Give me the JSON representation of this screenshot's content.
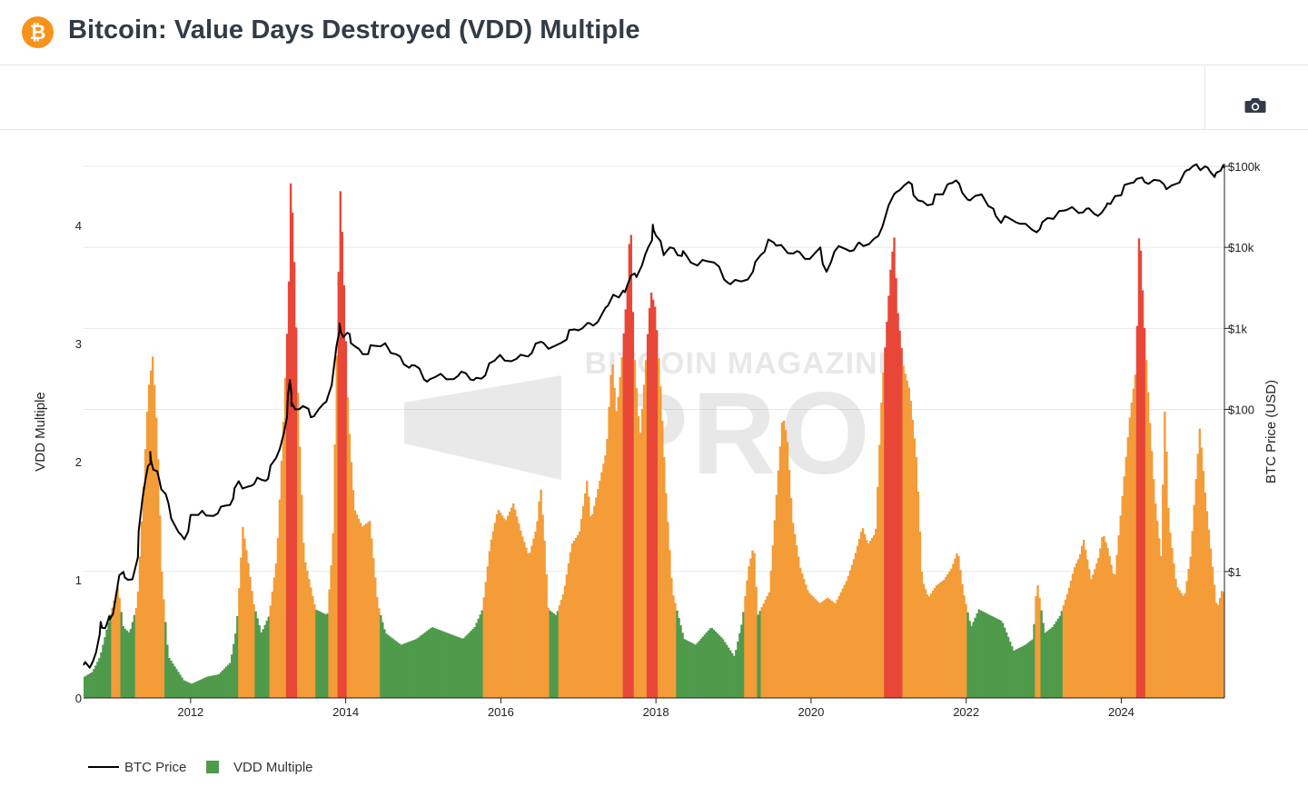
{
  "header": {
    "title": "Bitcoin: Value Days Destroyed (VDD) Multiple",
    "logo_glyph": "₿",
    "logo_color": "#f7931a"
  },
  "toolbar": {
    "camera_icon": "camera-icon"
  },
  "watermark": {
    "line1": "BITCOIN MAGAZINE",
    "line2": "PRO",
    "reg": "®"
  },
  "legend": [
    {
      "label": "BTC Price",
      "kind": "line",
      "color": "#000000"
    },
    {
      "label": "VDD Multiple",
      "kind": "square",
      "color": "#4f9a4b"
    }
  ],
  "chart_data": {
    "type": "bar+line",
    "title": "Bitcoin: Value Days Destroyed (VDD) Multiple",
    "ylabel_left": "VDD Multiple",
    "ylabel_right": "BTC Price (USD)",
    "xlim": [
      2010.62,
      2025.33
    ],
    "ylim_left": [
      0,
      4.5
    ],
    "ylim_right_log10": [
      -1.56,
      5.0
    ],
    "x_ticks": [
      2012,
      2014,
      2016,
      2018,
      2020,
      2022,
      2024
    ],
    "x_tick_labels": [
      "2012",
      "2014",
      "2016",
      "2018",
      "2020",
      "2022",
      "2024"
    ],
    "y_left_ticks": [
      0,
      1,
      2,
      3,
      4
    ],
    "y_left_tick_labels": [
      "0",
      "1",
      "2",
      "3",
      "4"
    ],
    "y_right_ticks": [
      1,
      100,
      1000,
      10000,
      100000
    ],
    "y_right_tick_labels": [
      "$1",
      "$100",
      "$1k",
      "$10k",
      "$100k"
    ],
    "color_bands": {
      "green_below": 0.75,
      "orange_below": 2.9,
      "green": "#4f9a4b",
      "orange": "#f39c38",
      "red": "#e84737"
    },
    "vdd_series": {
      "name": "VDD Multiple",
      "points": [
        [
          2010.62,
          0.18
        ],
        [
          2010.72,
          0.22
        ],
        [
          2010.82,
          0.35
        ],
        [
          2010.95,
          0.7
        ],
        [
          2011.05,
          0.95
        ],
        [
          2011.12,
          0.6
        ],
        [
          2011.2,
          0.55
        ],
        [
          2011.3,
          0.8
        ],
        [
          2011.38,
          1.8
        ],
        [
          2011.44,
          2.6
        ],
        [
          2011.5,
          2.9
        ],
        [
          2011.56,
          2.2
        ],
        [
          2011.62,
          1.0
        ],
        [
          2011.7,
          0.35
        ],
        [
          2011.8,
          0.25
        ],
        [
          2011.9,
          0.15
        ],
        [
          2012.0,
          0.12
        ],
        [
          2012.2,
          0.18
        ],
        [
          2012.35,
          0.2
        ],
        [
          2012.5,
          0.3
        ],
        [
          2012.58,
          0.6
        ],
        [
          2012.62,
          1.0
        ],
        [
          2012.66,
          1.45
        ],
        [
          2012.72,
          1.2
        ],
        [
          2012.8,
          0.8
        ],
        [
          2012.9,
          0.55
        ],
        [
          2013.0,
          0.7
        ],
        [
          2013.1,
          1.2
        ],
        [
          2013.18,
          2.3
        ],
        [
          2013.25,
          3.4
        ],
        [
          2013.28,
          4.45
        ],
        [
          2013.32,
          3.8
        ],
        [
          2013.38,
          2.4
        ],
        [
          2013.45,
          1.2
        ],
        [
          2013.6,
          0.75
        ],
        [
          2013.75,
          0.7
        ],
        [
          2013.82,
          1.3
        ],
        [
          2013.88,
          3.2
        ],
        [
          2013.92,
          4.35
        ],
        [
          2013.96,
          3.6
        ],
        [
          2014.02,
          2.4
        ],
        [
          2014.1,
          1.6
        ],
        [
          2014.2,
          1.45
        ],
        [
          2014.3,
          1.5
        ],
        [
          2014.4,
          0.8
        ],
        [
          2014.5,
          0.55
        ],
        [
          2014.7,
          0.45
        ],
        [
          2014.9,
          0.5
        ],
        [
          2015.1,
          0.6
        ],
        [
          2015.3,
          0.55
        ],
        [
          2015.5,
          0.5
        ],
        [
          2015.65,
          0.6
        ],
        [
          2015.75,
          0.75
        ],
        [
          2015.85,
          1.3
        ],
        [
          2015.95,
          1.6
        ],
        [
          2016.05,
          1.5
        ],
        [
          2016.15,
          1.65
        ],
        [
          2016.25,
          1.4
        ],
        [
          2016.35,
          1.2
        ],
        [
          2016.45,
          1.45
        ],
        [
          2016.5,
          1.8
        ],
        [
          2016.55,
          1.35
        ],
        [
          2016.6,
          0.75
        ],
        [
          2016.7,
          0.7
        ],
        [
          2016.8,
          0.9
        ],
        [
          2016.9,
          1.3
        ],
        [
          2017.0,
          1.4
        ],
        [
          2017.1,
          1.85
        ],
        [
          2017.15,
          1.5
        ],
        [
          2017.25,
          1.8
        ],
        [
          2017.35,
          2.1
        ],
        [
          2017.42,
          2.9
        ],
        [
          2017.48,
          2.4
        ],
        [
          2017.55,
          2.9
        ],
        [
          2017.62,
          3.5
        ],
        [
          2017.66,
          4.1
        ],
        [
          2017.7,
          3.0
        ],
        [
          2017.78,
          2.2
        ],
        [
          2017.85,
          2.8
        ],
        [
          2017.92,
          3.45
        ],
        [
          2017.98,
          3.3
        ],
        [
          2018.05,
          2.6
        ],
        [
          2018.12,
          1.7
        ],
        [
          2018.2,
          0.9
        ],
        [
          2018.35,
          0.5
        ],
        [
          2018.5,
          0.45
        ],
        [
          2018.7,
          0.6
        ],
        [
          2018.85,
          0.5
        ],
        [
          2019.0,
          0.35
        ],
        [
          2019.1,
          0.65
        ],
        [
          2019.18,
          1.1
        ],
        [
          2019.25,
          1.3
        ],
        [
          2019.3,
          0.7
        ],
        [
          2019.45,
          0.9
        ],
        [
          2019.55,
          1.8
        ],
        [
          2019.62,
          2.4
        ],
        [
          2019.68,
          2.2
        ],
        [
          2019.75,
          1.5
        ],
        [
          2019.85,
          1.1
        ],
        [
          2019.95,
          0.9
        ],
        [
          2020.1,
          0.8
        ],
        [
          2020.2,
          0.85
        ],
        [
          2020.3,
          0.8
        ],
        [
          2020.45,
          1.0
        ],
        [
          2020.55,
          1.2
        ],
        [
          2020.65,
          1.45
        ],
        [
          2020.72,
          1.3
        ],
        [
          2020.82,
          1.4
        ],
        [
          2020.9,
          2.6
        ],
        [
          2020.95,
          3.05
        ],
        [
          2021.02,
          3.7
        ],
        [
          2021.06,
          3.9
        ],
        [
          2021.1,
          3.3
        ],
        [
          2021.18,
          2.8
        ],
        [
          2021.26,
          2.6
        ],
        [
          2021.35,
          2.0
        ],
        [
          2021.42,
          1.0
        ],
        [
          2021.5,
          0.85
        ],
        [
          2021.6,
          0.95
        ],
        [
          2021.7,
          1.0
        ],
        [
          2021.8,
          1.1
        ],
        [
          2021.88,
          1.25
        ],
        [
          2021.95,
          0.9
        ],
        [
          2022.05,
          0.6
        ],
        [
          2022.15,
          0.75
        ],
        [
          2022.3,
          0.7
        ],
        [
          2022.45,
          0.65
        ],
        [
          2022.6,
          0.4
        ],
        [
          2022.75,
          0.45
        ],
        [
          2022.85,
          0.5
        ],
        [
          2022.9,
          1.0
        ],
        [
          2023.0,
          0.55
        ],
        [
          2023.1,
          0.6
        ],
        [
          2023.2,
          0.7
        ],
        [
          2023.3,
          0.9
        ],
        [
          2023.38,
          1.1
        ],
        [
          2023.45,
          1.2
        ],
        [
          2023.5,
          1.35
        ],
        [
          2023.6,
          1.0
        ],
        [
          2023.7,
          1.2
        ],
        [
          2023.75,
          1.4
        ],
        [
          2023.82,
          1.25
        ],
        [
          2023.9,
          1.0
        ],
        [
          2024.0,
          1.7
        ],
        [
          2024.1,
          2.4
        ],
        [
          2024.18,
          2.8
        ],
        [
          2024.22,
          4.05
        ],
        [
          2024.28,
          3.2
        ],
        [
          2024.35,
          2.4
        ],
        [
          2024.42,
          1.7
        ],
        [
          2024.5,
          1.2
        ],
        [
          2024.55,
          2.5
        ],
        [
          2024.6,
          1.5
        ],
        [
          2024.7,
          0.95
        ],
        [
          2024.8,
          0.85
        ],
        [
          2024.88,
          1.2
        ],
        [
          2024.95,
          1.85
        ],
        [
          2025.0,
          2.3
        ],
        [
          2025.06,
          1.8
        ],
        [
          2025.15,
          1.2
        ],
        [
          2025.22,
          0.75
        ],
        [
          2025.3,
          0.95
        ],
        [
          2025.33,
          0.7
        ]
      ]
    },
    "price_series": {
      "name": "BTC Price",
      "points": [
        [
          2010.62,
          0.07
        ],
        [
          2010.7,
          0.065
        ],
        [
          2010.78,
          0.1
        ],
        [
          2010.84,
          0.24
        ],
        [
          2010.9,
          0.2
        ],
        [
          2010.95,
          0.28
        ],
        [
          2011.0,
          0.3
        ],
        [
          2011.08,
          0.9
        ],
        [
          2011.15,
          0.85
        ],
        [
          2011.25,
          0.8
        ],
        [
          2011.32,
          1.5
        ],
        [
          2011.38,
          8
        ],
        [
          2011.45,
          20
        ],
        [
          2011.48,
          30
        ],
        [
          2011.52,
          18
        ],
        [
          2011.6,
          13
        ],
        [
          2011.68,
          9
        ],
        [
          2011.75,
          4.5
        ],
        [
          2011.85,
          3
        ],
        [
          2011.92,
          2.5
        ],
        [
          2012.0,
          5
        ],
        [
          2012.1,
          5
        ],
        [
          2012.2,
          4.9
        ],
        [
          2012.35,
          5.2
        ],
        [
          2012.45,
          6.5
        ],
        [
          2012.55,
          8
        ],
        [
          2012.62,
          13
        ],
        [
          2012.72,
          11
        ],
        [
          2012.82,
          12
        ],
        [
          2012.92,
          13.5
        ],
        [
          2013.0,
          14
        ],
        [
          2013.1,
          25
        ],
        [
          2013.2,
          50
        ],
        [
          2013.25,
          120
        ],
        [
          2013.28,
          230
        ],
        [
          2013.3,
          110
        ],
        [
          2013.35,
          100
        ],
        [
          2013.45,
          110
        ],
        [
          2013.55,
          80
        ],
        [
          2013.65,
          100
        ],
        [
          2013.75,
          125
        ],
        [
          2013.82,
          200
        ],
        [
          2013.88,
          600
        ],
        [
          2013.92,
          1150
        ],
        [
          2013.97,
          780
        ],
        [
          2014.05,
          850
        ],
        [
          2014.12,
          600
        ],
        [
          2014.22,
          480
        ],
        [
          2014.32,
          620
        ],
        [
          2014.45,
          600
        ],
        [
          2014.55,
          560
        ],
        [
          2014.65,
          480
        ],
        [
          2014.75,
          360
        ],
        [
          2014.85,
          350
        ],
        [
          2014.95,
          320
        ],
        [
          2015.05,
          220
        ],
        [
          2015.15,
          250
        ],
        [
          2015.3,
          235
        ],
        [
          2015.45,
          260
        ],
        [
          2015.55,
          280
        ],
        [
          2015.65,
          230
        ],
        [
          2015.75,
          240
        ],
        [
          2015.85,
          370
        ],
        [
          2015.95,
          430
        ],
        [
          2016.05,
          400
        ],
        [
          2016.2,
          420
        ],
        [
          2016.35,
          450
        ],
        [
          2016.45,
          650
        ],
        [
          2016.55,
          660
        ],
        [
          2016.7,
          610
        ],
        [
          2016.85,
          730
        ],
        [
          2016.95,
          970
        ],
        [
          2017.05,
          1000
        ],
        [
          2017.15,
          1150
        ],
        [
          2017.25,
          1200
        ],
        [
          2017.35,
          1800
        ],
        [
          2017.45,
          2600
        ],
        [
          2017.52,
          2400
        ],
        [
          2017.6,
          2800
        ],
        [
          2017.68,
          4500
        ],
        [
          2017.75,
          4300
        ],
        [
          2017.82,
          6000
        ],
        [
          2017.9,
          10000
        ],
        [
          2017.96,
          19000
        ],
        [
          2018.0,
          14000
        ],
        [
          2018.1,
          8000
        ],
        [
          2018.18,
          10000
        ],
        [
          2018.28,
          8000
        ],
        [
          2018.35,
          9000
        ],
        [
          2018.45,
          6500
        ],
        [
          2018.6,
          7000
        ],
        [
          2018.75,
          6500
        ],
        [
          2018.88,
          4000
        ],
        [
          2018.96,
          3500
        ],
        [
          2019.1,
          3800
        ],
        [
          2019.25,
          5000
        ],
        [
          2019.35,
          8000
        ],
        [
          2019.45,
          12500
        ],
        [
          2019.55,
          10500
        ],
        [
          2019.7,
          8500
        ],
        [
          2019.82,
          9000
        ],
        [
          2019.92,
          7200
        ],
        [
          2020.05,
          8500
        ],
        [
          2020.12,
          10000
        ],
        [
          2020.2,
          5000
        ],
        [
          2020.3,
          8800
        ],
        [
          2020.45,
          9500
        ],
        [
          2020.55,
          9200
        ],
        [
          2020.62,
          11500
        ],
        [
          2020.75,
          11000
        ],
        [
          2020.85,
          13500
        ],
        [
          2020.92,
          18000
        ],
        [
          2021.0,
          33000
        ],
        [
          2021.1,
          48000
        ],
        [
          2021.2,
          58000
        ],
        [
          2021.3,
          60000
        ],
        [
          2021.38,
          38000
        ],
        [
          2021.5,
          33000
        ],
        [
          2021.6,
          45000
        ],
        [
          2021.7,
          45000
        ],
        [
          2021.8,
          62000
        ],
        [
          2021.87,
          67000
        ],
        [
          2021.95,
          47000
        ],
        [
          2022.05,
          38000
        ],
        [
          2022.2,
          45000
        ],
        [
          2022.35,
          30000
        ],
        [
          2022.45,
          20000
        ],
        [
          2022.55,
          23000
        ],
        [
          2022.7,
          19500
        ],
        [
          2022.85,
          16500
        ],
        [
          2022.95,
          16800
        ],
        [
          2023.05,
          23000
        ],
        [
          2023.2,
          28000
        ],
        [
          2023.3,
          29000
        ],
        [
          2023.45,
          26500
        ],
        [
          2023.55,
          30000
        ],
        [
          2023.65,
          26000
        ],
        [
          2023.75,
          27000
        ],
        [
          2023.82,
          35000
        ],
        [
          2023.92,
          43000
        ],
        [
          2024.0,
          44000
        ],
        [
          2024.12,
          62000
        ],
        [
          2024.2,
          70000
        ],
        [
          2024.3,
          64000
        ],
        [
          2024.42,
          68000
        ],
        [
          2024.55,
          60000
        ],
        [
          2024.65,
          58000
        ],
        [
          2024.75,
          63000
        ],
        [
          2024.85,
          90000
        ],
        [
          2024.92,
          100000
        ],
        [
          2025.0,
          95000
        ],
        [
          2025.08,
          100000
        ],
        [
          2025.15,
          85000
        ],
        [
          2025.22,
          82000
        ],
        [
          2025.28,
          88000
        ],
        [
          2025.33,
          95000
        ]
      ]
    }
  }
}
